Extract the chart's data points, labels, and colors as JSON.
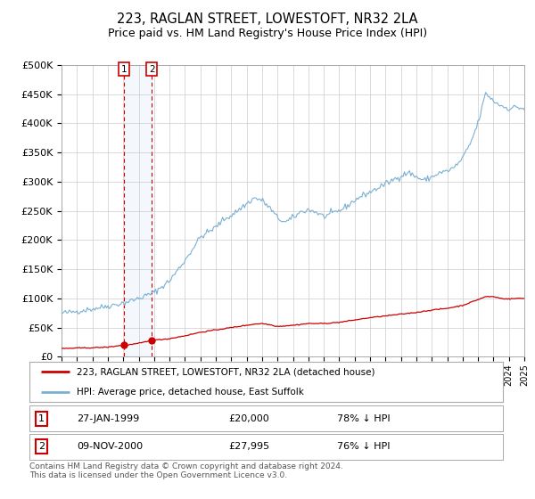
{
  "title": "223, RAGLAN STREET, LOWESTOFT, NR32 2LA",
  "subtitle": "Price paid vs. HM Land Registry's House Price Index (HPI)",
  "title_fontsize": 10.5,
  "subtitle_fontsize": 9,
  "background_color": "#ffffff",
  "plot_bg_color": "#ffffff",
  "grid_color": "#cccccc",
  "hpi_color": "#7ab0d4",
  "price_color": "#cc0000",
  "sale1_date": 1999.07,
  "sale1_price": 20000,
  "sale2_date": 2000.86,
  "sale2_price": 27995,
  "legend1_label": "223, RAGLAN STREET, LOWESTOFT, NR32 2LA (detached house)",
  "legend2_label": "HPI: Average price, detached house, East Suffolk",
  "table_row1": [
    "1",
    "27-JAN-1999",
    "£20,000",
    "78% ↓ HPI"
  ],
  "table_row2": [
    "2",
    "09-NOV-2000",
    "£27,995",
    "76% ↓ HPI"
  ],
  "footer": "Contains HM Land Registry data © Crown copyright and database right 2024.\nThis data is licensed under the Open Government Licence v3.0.",
  "xlabel_fontsize": 7,
  "ylabel_fontsize": 8
}
